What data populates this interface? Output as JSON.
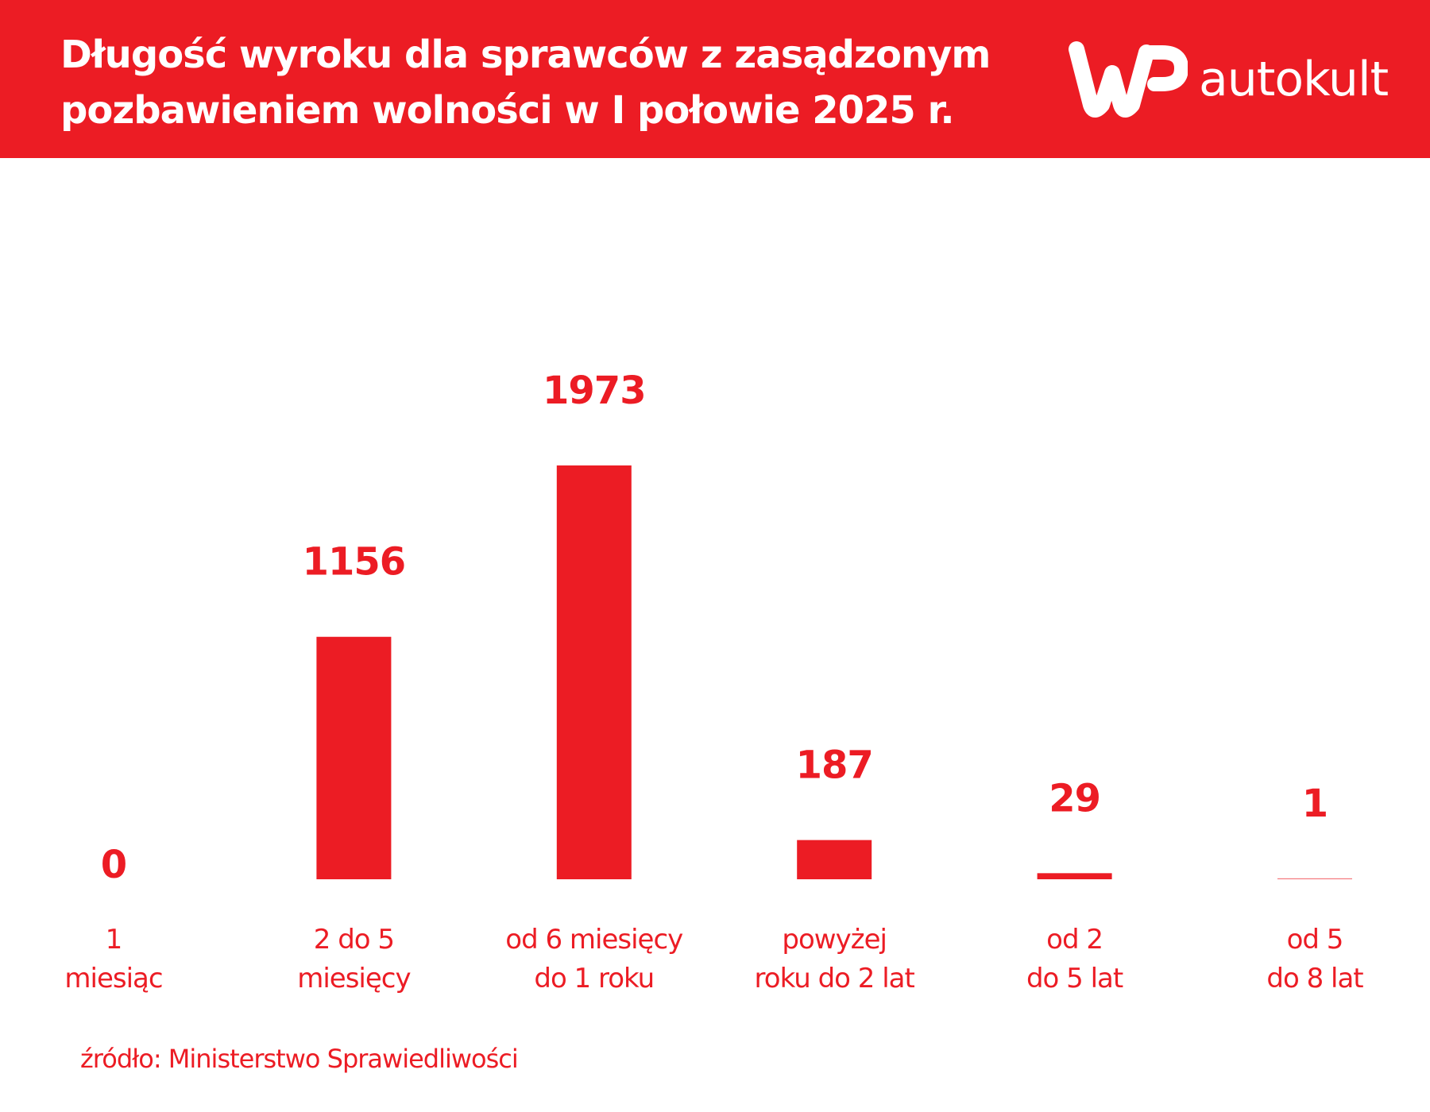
{
  "header": {
    "title_line1": "Długość wyroku dla sprawców z zasądzonym",
    "title_line2": "pozbawieniem wolności w I połowie 2025 r.",
    "logo_text": "autokult",
    "logo_mark": "WP"
  },
  "colors": {
    "accent": "#ec1c24",
    "background": "#ffffff"
  },
  "chart_data": {
    "type": "bar",
    "title": "Długość wyroku dla sprawców z zasądzonym pozbawieniem wolności w I połowie 2025 r.",
    "categories": [
      [
        "1",
        "miesiąc"
      ],
      [
        "2 do 5",
        "miesięcy"
      ],
      [
        "od 6 miesięcy",
        "do 1 roku"
      ],
      [
        "powyżej",
        "roku do 2 lat"
      ],
      [
        "od 2",
        "do 5 lat"
      ],
      [
        "od 5",
        "do 8 lat"
      ]
    ],
    "values": [
      0,
      1156,
      1973,
      187,
      29,
      1
    ],
    "data_labels": [
      "0",
      "1156",
      "1973",
      "187",
      "29",
      "1"
    ],
    "grid": false,
    "legend": "none"
  },
  "source": "źródło: Ministerstwo Sprawiedliwości"
}
